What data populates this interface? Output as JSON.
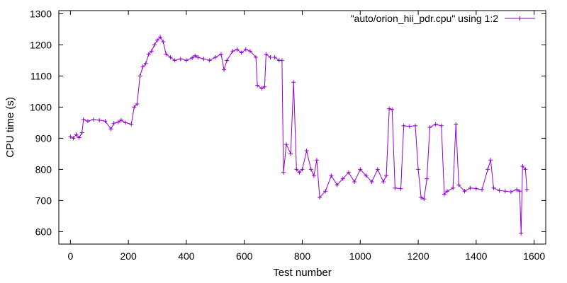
{
  "chart_data": {
    "type": "line",
    "title": "",
    "xlabel": "Test number",
    "ylabel": "CPU time (s)",
    "xlim": [
      -40,
      1640
    ],
    "ylim": [
      560,
      1310
    ],
    "xticks": [
      0,
      200,
      400,
      600,
      800,
      1000,
      1200,
      1400,
      1600
    ],
    "yticks": [
      600,
      700,
      800,
      900,
      1000,
      1100,
      1200,
      1300
    ],
    "grid": false,
    "legend_position": "top-right",
    "series": [
      {
        "name": "\"auto/orion_hii_pdr.cpu\" using 1:2",
        "color": "#9400d3",
        "marker": "plus",
        "points": [
          [
            0,
            905
          ],
          [
            10,
            900
          ],
          [
            20,
            912
          ],
          [
            30,
            902
          ],
          [
            40,
            918
          ],
          [
            45,
            960
          ],
          [
            60,
            955
          ],
          [
            80,
            960
          ],
          [
            100,
            958
          ],
          [
            120,
            955
          ],
          [
            140,
            930
          ],
          [
            150,
            948
          ],
          [
            165,
            952
          ],
          [
            175,
            958
          ],
          [
            190,
            950
          ],
          [
            210,
            945
          ],
          [
            220,
            1000
          ],
          [
            230,
            1010
          ],
          [
            240,
            1100
          ],
          [
            250,
            1130
          ],
          [
            260,
            1140
          ],
          [
            270,
            1170
          ],
          [
            280,
            1180
          ],
          [
            290,
            1200
          ],
          [
            300,
            1215
          ],
          [
            310,
            1225
          ],
          [
            320,
            1210
          ],
          [
            330,
            1170
          ],
          [
            345,
            1160
          ],
          [
            360,
            1150
          ],
          [
            380,
            1155
          ],
          [
            400,
            1150
          ],
          [
            420,
            1158
          ],
          [
            430,
            1165
          ],
          [
            440,
            1160
          ],
          [
            460,
            1155
          ],
          [
            480,
            1150
          ],
          [
            500,
            1160
          ],
          [
            520,
            1170
          ],
          [
            530,
            1120
          ],
          [
            540,
            1150
          ],
          [
            560,
            1180
          ],
          [
            575,
            1185
          ],
          [
            590,
            1175
          ],
          [
            605,
            1185
          ],
          [
            620,
            1180
          ],
          [
            640,
            1160
          ],
          [
            645,
            1070
          ],
          [
            660,
            1060
          ],
          [
            670,
            1065
          ],
          [
            675,
            1170
          ],
          [
            690,
            1160
          ],
          [
            705,
            1160
          ],
          [
            720,
            1150
          ],
          [
            730,
            1150
          ],
          [
            735,
            790
          ],
          [
            745,
            880
          ],
          [
            760,
            850
          ],
          [
            770,
            1080
          ],
          [
            780,
            800
          ],
          [
            790,
            790
          ],
          [
            800,
            800
          ],
          [
            815,
            860
          ],
          [
            830,
            800
          ],
          [
            840,
            780
          ],
          [
            850,
            830
          ],
          [
            860,
            710
          ],
          [
            880,
            730
          ],
          [
            900,
            780
          ],
          [
            920,
            750
          ],
          [
            940,
            770
          ],
          [
            960,
            790
          ],
          [
            980,
            760
          ],
          [
            1000,
            800
          ],
          [
            1020,
            780
          ],
          [
            1040,
            760
          ],
          [
            1060,
            800
          ],
          [
            1080,
            760
          ],
          [
            1090,
            780
          ],
          [
            1100,
            995
          ],
          [
            1110,
            992
          ],
          [
            1120,
            740
          ],
          [
            1140,
            738
          ],
          [
            1150,
            940
          ],
          [
            1170,
            938
          ],
          [
            1190,
            940
          ],
          [
            1200,
            800
          ],
          [
            1210,
            710
          ],
          [
            1220,
            705
          ],
          [
            1230,
            770
          ],
          [
            1240,
            935
          ],
          [
            1260,
            945
          ],
          [
            1280,
            940
          ],
          [
            1290,
            720
          ],
          [
            1300,
            730
          ],
          [
            1320,
            740
          ],
          [
            1330,
            945
          ],
          [
            1340,
            750
          ],
          [
            1360,
            730
          ],
          [
            1380,
            740
          ],
          [
            1400,
            738
          ],
          [
            1420,
            735
          ],
          [
            1440,
            800
          ],
          [
            1450,
            830
          ],
          [
            1460,
            740
          ],
          [
            1480,
            732
          ],
          [
            1500,
            730
          ],
          [
            1520,
            728
          ],
          [
            1540,
            735
          ],
          [
            1550,
            730
          ],
          [
            1555,
            595
          ],
          [
            1560,
            810
          ],
          [
            1570,
            800
          ],
          [
            1575,
            735
          ]
        ]
      }
    ]
  }
}
